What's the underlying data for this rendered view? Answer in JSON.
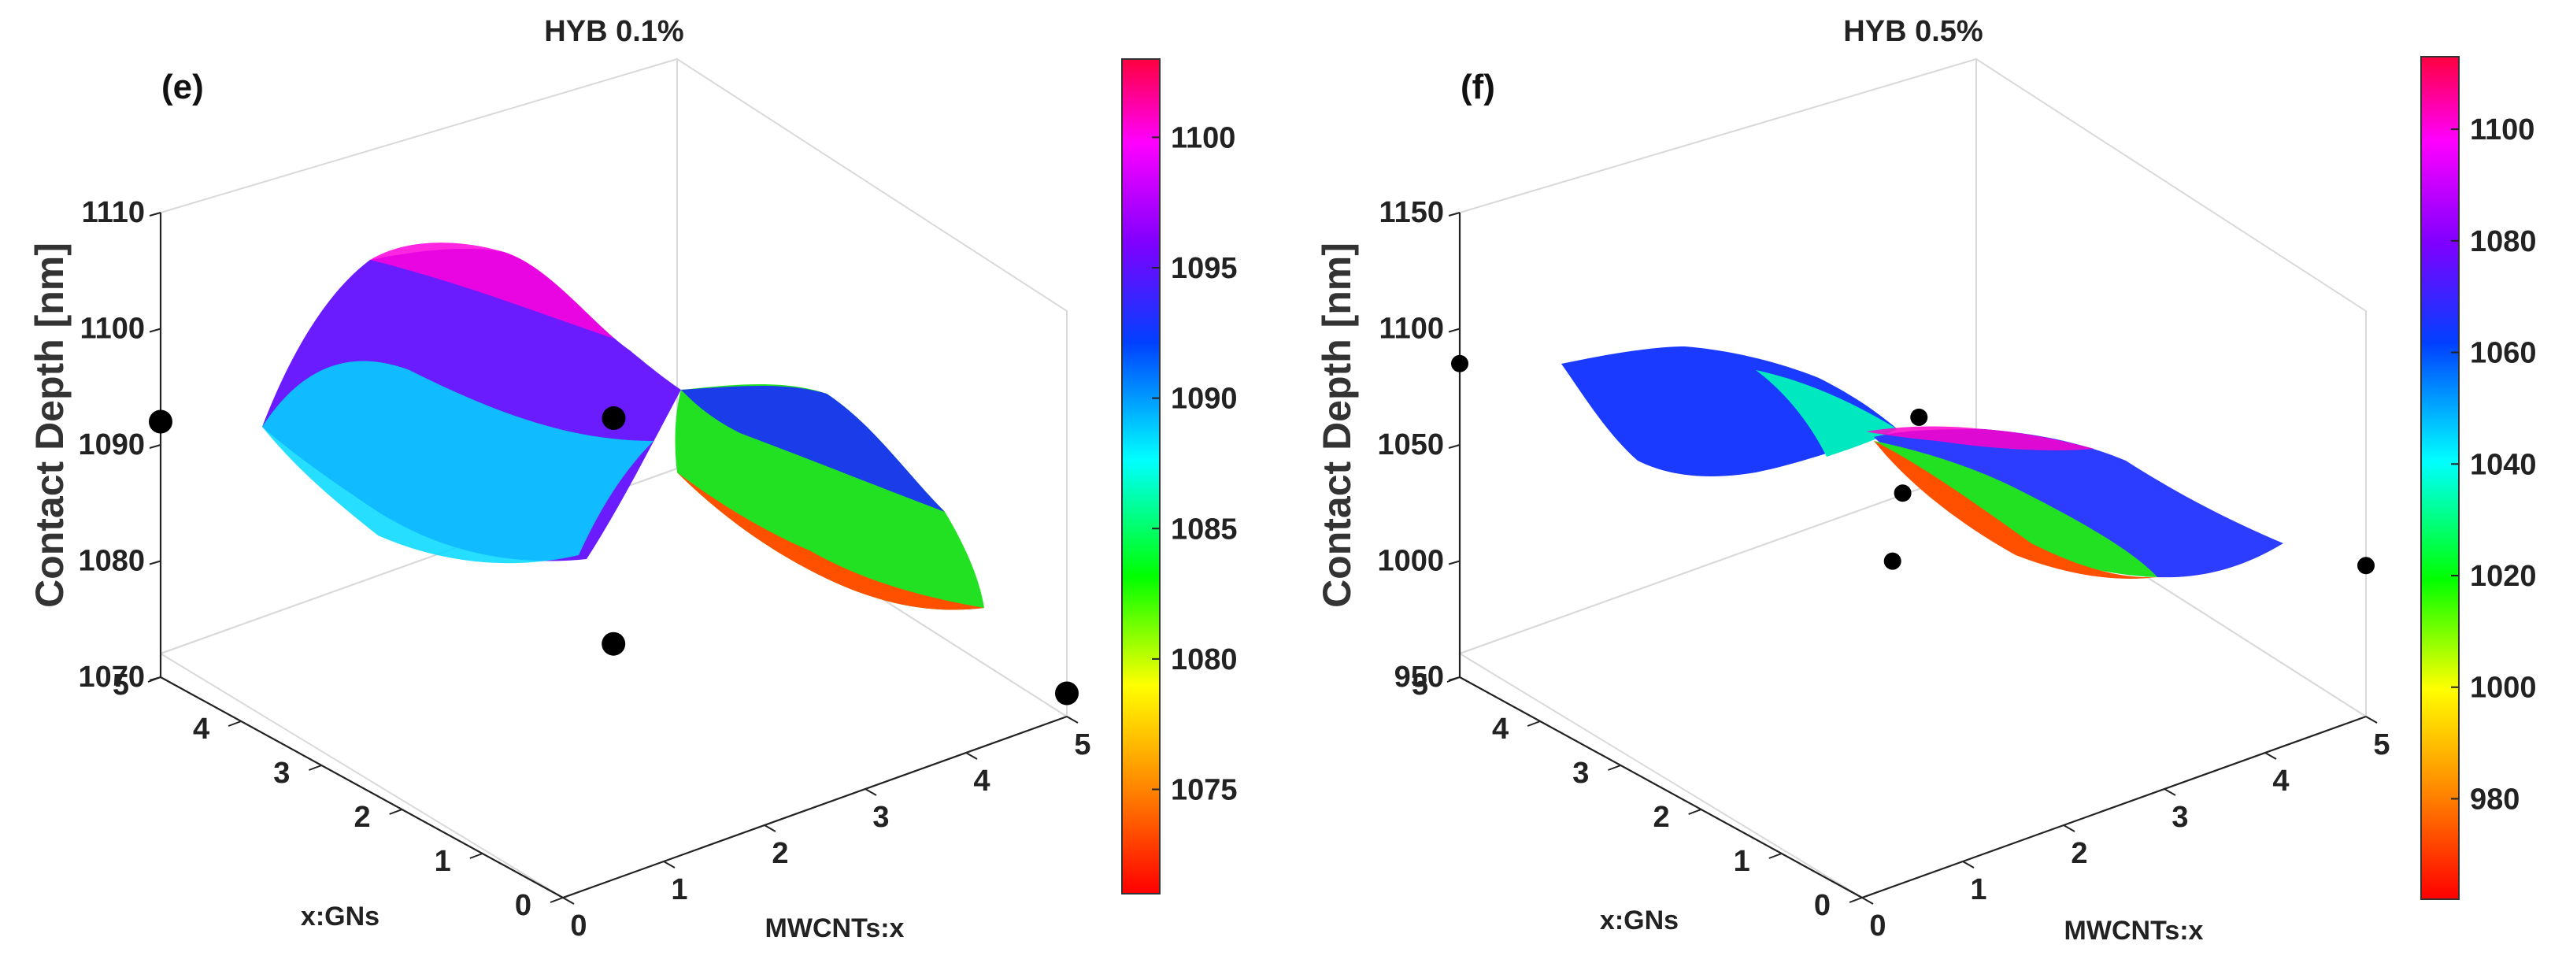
{
  "figure": {
    "panels": [
      "e",
      "f"
    ]
  },
  "chart_data": [
    {
      "type": "surface3d",
      "panel_label": "(e)",
      "title": "HYB 0.1%",
      "zlabel": "Contact Depth [nm]",
      "xlabel": "MWCNTs:x",
      "ylabel": "x:GNs",
      "x_ticks": [
        "0",
        "1",
        "2",
        "3",
        "4",
        "5"
      ],
      "y_ticks": [
        "0",
        "1",
        "2",
        "3",
        "4",
        "5"
      ],
      "z_ticks": [
        "1070",
        "1080",
        "1090",
        "1100",
        "1110"
      ],
      "zlim": [
        1070,
        1110
      ],
      "colorbar": {
        "range": [
          1071,
          1103
        ],
        "ticks": [
          "1075",
          "1080",
          "1085",
          "1090",
          "1095",
          "1100"
        ]
      },
      "points": [
        {
          "mwcnts": 0,
          "gns": 5,
          "depth": 1092
        },
        {
          "mwcnts": 5,
          "gns": 0,
          "depth": 1072
        },
        {
          "mwcnts": 2.5,
          "gns": 2.5,
          "depth": 1094
        },
        {
          "mwcnts": 1.3,
          "gns": 1.0,
          "depth": 1084
        }
      ]
    },
    {
      "type": "surface3d",
      "panel_label": "(f)",
      "title": "HYB 0.5%",
      "zlabel": "Contact Depth [nm]",
      "xlabel": "MWCNTs:x",
      "ylabel": "x:GNs",
      "x_ticks": [
        "0",
        "1",
        "2",
        "3",
        "4",
        "5"
      ],
      "y_ticks": [
        "0",
        "1",
        "2",
        "3",
        "4",
        "5"
      ],
      "z_ticks": [
        "950",
        "1000",
        "1050",
        "1100",
        "1150"
      ],
      "zlim": [
        950,
        1150
      ],
      "colorbar": {
        "range": [
          962,
          1113
        ],
        "ticks": [
          "980",
          "1000",
          "1020",
          "1040",
          "1060",
          "1080",
          "1100"
        ]
      },
      "points": [
        {
          "mwcnts": 0,
          "gns": 5,
          "depth": 1085
        },
        {
          "mwcnts": 5,
          "gns": 0,
          "depth": 1015
        },
        {
          "mwcnts": 1.5,
          "gns": 1.5,
          "depth": 1043
        },
        {
          "mwcnts": 2.0,
          "gns": 2.0,
          "depth": 1055
        },
        {
          "mwcnts": 2.8,
          "gns": 2.8,
          "depth": 1060
        }
      ]
    }
  ]
}
